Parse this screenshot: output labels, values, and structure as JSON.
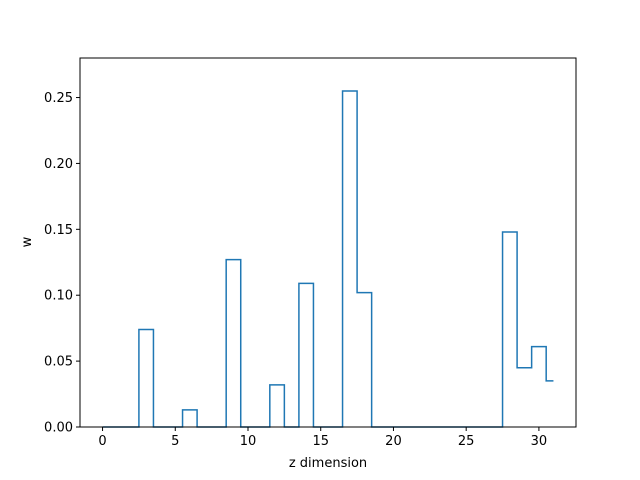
{
  "chart_data": {
    "type": "step",
    "xlabel": "z dimension",
    "ylabel": "w",
    "xlim": [
      -1.55,
      32.55
    ],
    "ylim": [
      0,
      0.28
    ],
    "xticks": [
      0,
      5,
      10,
      15,
      20,
      25,
      30
    ],
    "yticks": [
      0.0,
      0.05,
      0.1,
      0.15,
      0.2,
      0.25
    ],
    "xtick_labels": [
      "0",
      "5",
      "10",
      "15",
      "20",
      "25",
      "30"
    ],
    "ytick_labels": [
      "0.00",
      "0.05",
      "0.10",
      "0.15",
      "0.20",
      "0.25"
    ],
    "grid": false,
    "series": [
      {
        "color": "#1f77b4",
        "x": [
          0,
          1,
          2,
          3,
          4,
          5,
          6,
          7,
          8,
          9,
          10,
          11,
          12,
          13,
          14,
          15,
          16,
          17,
          18,
          19,
          20,
          21,
          22,
          23,
          24,
          25,
          26,
          27,
          28,
          29,
          30,
          31
        ],
        "values": [
          0,
          0,
          0,
          0.074,
          0,
          0,
          0.013,
          0,
          0,
          0.127,
          0,
          0,
          0.032,
          0,
          0.109,
          0,
          0,
          0.255,
          0.102,
          0,
          0,
          0,
          0,
          0,
          0,
          0,
          0,
          0,
          0.148,
          0.045,
          0.061,
          0.035
        ]
      }
    ]
  }
}
